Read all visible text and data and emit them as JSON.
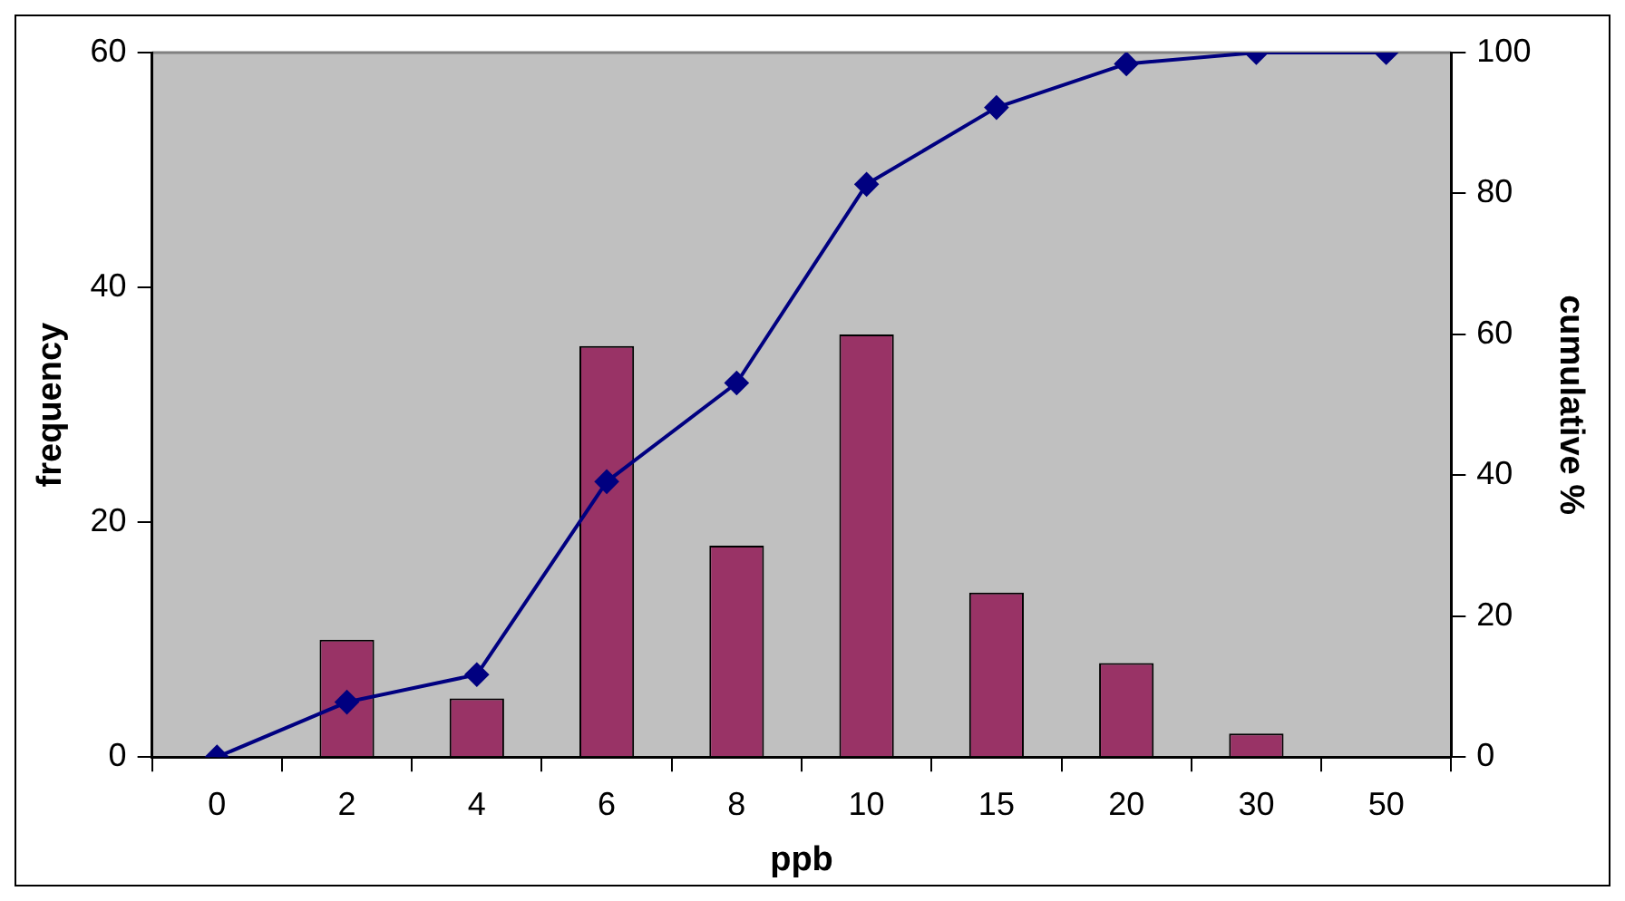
{
  "chart_data": {
    "type": "bar",
    "xlabel": "ppb",
    "ylabel": "frequency",
    "y2label": "cumulative %",
    "categories": [
      "0",
      "2",
      "4",
      "6",
      "8",
      "10",
      "15",
      "20",
      "30",
      "50"
    ],
    "series": [
      {
        "color": "#993366",
        "values": [
          0,
          10,
          5,
          35,
          18,
          36,
          14,
          8,
          2,
          0
        ]
      },
      {
        "type": "line",
        "axis": "y2",
        "color": "#000080",
        "marker": "diamond",
        "values": [
          0,
          7.8,
          11.7,
          39.1,
          53.1,
          81.3,
          92.2,
          98.4,
          100,
          100
        ]
      }
    ],
    "ylim": [
      0,
      60
    ],
    "yticks": [
      0,
      20,
      40,
      60
    ],
    "y2lim": [
      0,
      100
    ],
    "y2ticks": [
      0,
      20,
      40,
      60,
      80,
      100
    ],
    "grid": false,
    "legend": false
  }
}
